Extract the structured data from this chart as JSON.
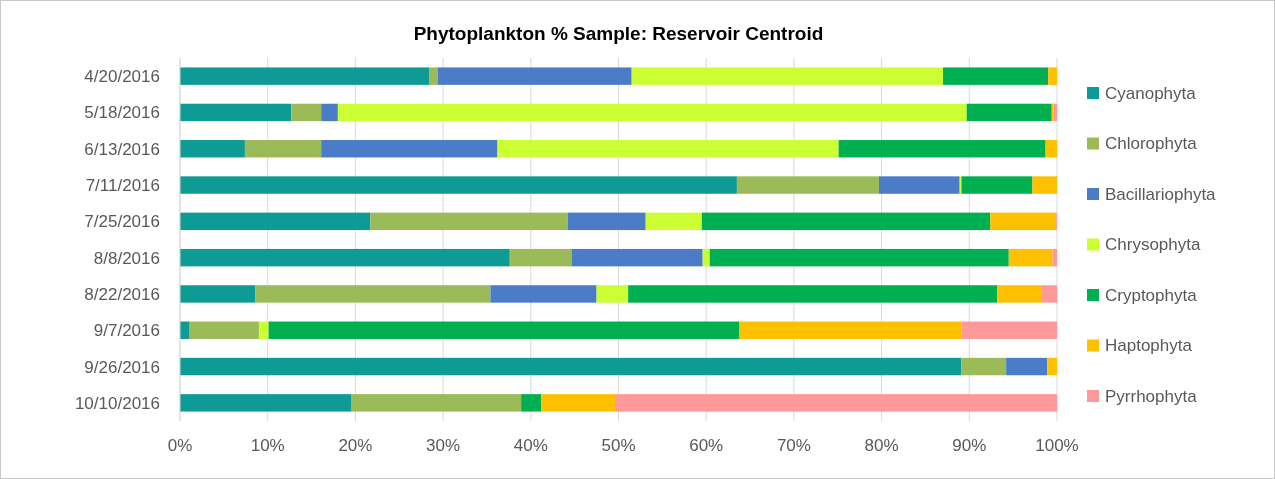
{
  "chart_data": {
    "type": "bar",
    "orientation": "horizontal",
    "stacked": true,
    "title": "Phytoplankton % Sample: Reservoir Centroid",
    "categories": [
      "4/20/2016",
      "5/18/2016",
      "6/13/2016",
      "7/11/2016",
      "7/25/2016",
      "8/8/2016",
      "8/22/2016",
      "9/7/2016",
      "9/26/2016",
      "10/10/2016"
    ],
    "series": [
      {
        "name": "Cyanophyta",
        "color": "#0e9a95",
        "values": [
          28.4,
          12.7,
          7.4,
          63.5,
          21.7,
          37.6,
          8.6,
          1.1,
          89.1,
          19.5
        ]
      },
      {
        "name": "Chlorophyta",
        "color": "#9bbb59",
        "values": [
          1.0,
          3.4,
          8.7,
          16.2,
          22.5,
          7.1,
          26.8,
          7.9,
          5.1,
          19.4
        ]
      },
      {
        "name": "Bacillariophyta",
        "color": "#4a7cc8",
        "values": [
          22.1,
          1.9,
          20.1,
          9.2,
          8.9,
          14.9,
          12.1,
          0,
          4.7,
          0
        ]
      },
      {
        "name": "Chrysophyta",
        "color": "#ccff33",
        "values": [
          35.5,
          71.7,
          38.9,
          0.2,
          6.4,
          0.8,
          3.6,
          1.1,
          0,
          0
        ]
      },
      {
        "name": "Cryptophyta",
        "color": "#00b050",
        "values": [
          12.0,
          9.7,
          23.6,
          8.1,
          32.9,
          34.1,
          42.1,
          53.7,
          0,
          2.3
        ]
      },
      {
        "name": "Haptophyta",
        "color": "#ffc000",
        "values": [
          1.0,
          0.2,
          1.3,
          2.8,
          7.5,
          5.0,
          5.0,
          25.3,
          1.1,
          8.4
        ]
      },
      {
        "name": "Pyrrhophyta",
        "color": "#ff9999",
        "values": [
          0,
          0.4,
          0,
          0,
          0.1,
          0.5,
          1.8,
          10.9,
          0,
          50.4
        ]
      }
    ],
    "xlim": [
      0,
      100
    ],
    "xticks": [
      {
        "value": 0,
        "label": "0%"
      },
      {
        "value": 10,
        "label": "10%"
      },
      {
        "value": 20,
        "label": "20%"
      },
      {
        "value": 30,
        "label": "30%"
      },
      {
        "value": 40,
        "label": "40%"
      },
      {
        "value": 50,
        "label": "50%"
      },
      {
        "value": 60,
        "label": "60%"
      },
      {
        "value": 70,
        "label": "70%"
      },
      {
        "value": 80,
        "label": "80%"
      },
      {
        "value": 90,
        "label": "90%"
      },
      {
        "value": 100,
        "label": "100%"
      }
    ],
    "grid": "x",
    "legend": "right"
  }
}
